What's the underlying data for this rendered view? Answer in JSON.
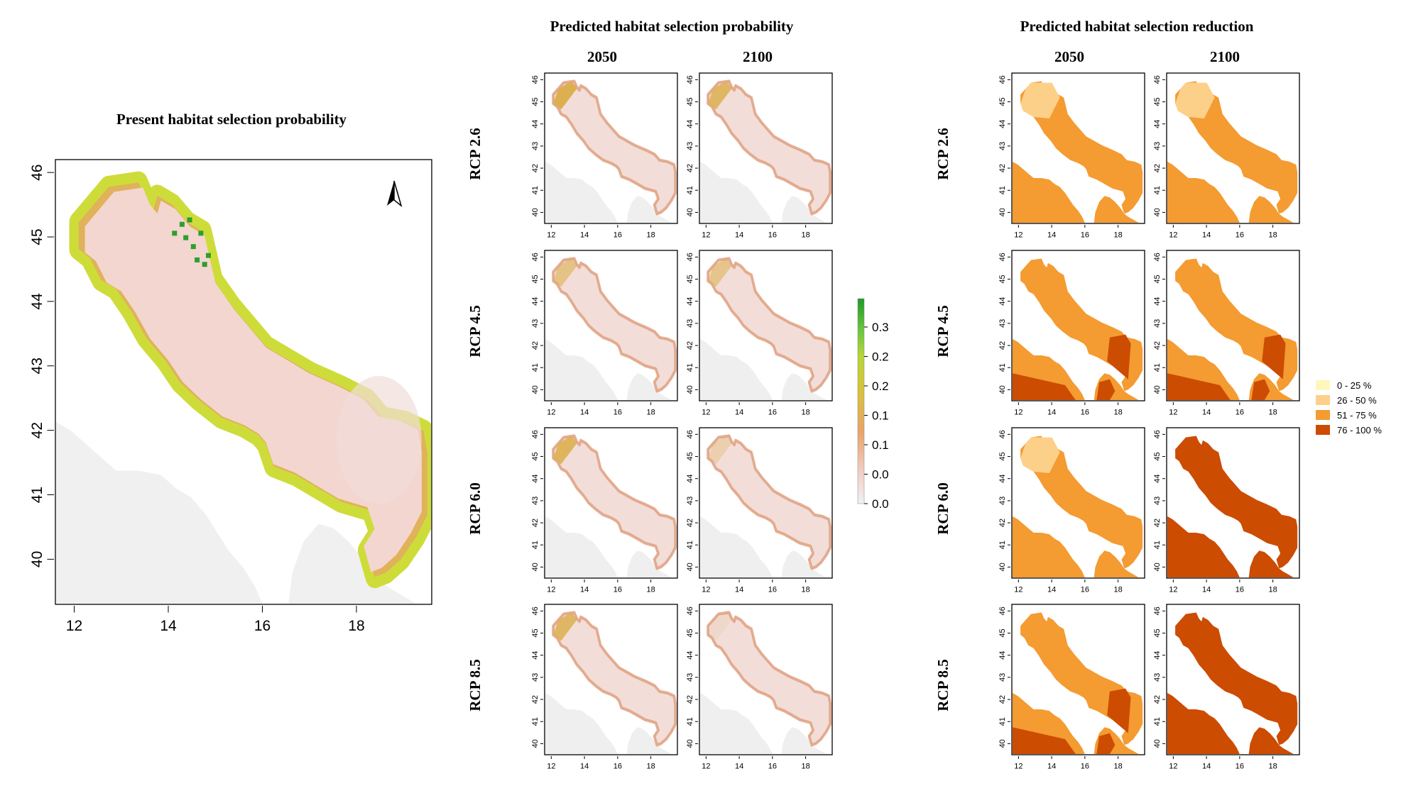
{
  "figure": {
    "left_title": "Present habitat selection probability",
    "mid_title": "Predicted habitat selection probability",
    "right_title": "Predicted habitat selection reduction",
    "years": [
      "2050",
      "2100"
    ],
    "rows": [
      "RCP 2.6",
      "RCP 4.5",
      "RCP 6.0",
      "RCP 8.5"
    ]
  },
  "chart_data": [
    {
      "type": "heatmap",
      "title": "Present habitat selection probability",
      "x_ticks": [
        12,
        14,
        16,
        18
      ],
      "y_ticks": [
        40,
        41,
        42,
        43,
        44,
        45,
        46
      ],
      "xlim": [
        11.6,
        19.6
      ],
      "ylim": [
        39.3,
        46.2
      ],
      "north_arrow": true,
      "colorbar": {
        "tick_labels": [
          "0.3",
          "0.2",
          "0.2",
          "0.1",
          "0.1",
          "0.0",
          "0.0"
        ],
        "colors": [
          "#f2f2f2",
          "#f0c8bc",
          "#e8a46a",
          "#d9c23a",
          "#b5d638",
          "#64c23e",
          "#1f9a26"
        ],
        "range": [
          0,
          0.38
        ]
      },
      "colors": {
        "sea_low": "#f0f0f0",
        "basin": "#f3d6cf",
        "coast_mid": "#e0b25a",
        "coast_high": "#cedc3a",
        "coast_peak": "#2f9e2f"
      }
    },
    {
      "type": "heatmap",
      "title": "Predicted habitat selection probability",
      "columns": [
        "2050",
        "2100"
      ],
      "rows": [
        "RCP 2.6",
        "RCP 4.5",
        "RCP 6.0",
        "RCP 8.5"
      ],
      "x_ticks": [
        12,
        14,
        16,
        18
      ],
      "y_ticks": [
        40,
        41,
        42,
        43,
        44,
        45,
        46
      ],
      "northern_coast_intensity": [
        [
          1.0,
          0.85
        ],
        [
          0.6,
          0.55
        ],
        [
          0.9,
          0.3
        ],
        [
          0.85,
          0.1
        ]
      ]
    },
    {
      "type": "heatmap",
      "title": "Predicted habitat selection reduction",
      "columns": [
        "2050",
        "2100"
      ],
      "rows": [
        "RCP 2.6",
        "RCP 4.5",
        "RCP 6.0",
        "RCP 8.5"
      ],
      "x_ticks": [
        12,
        14,
        16,
        18
      ],
      "y_ticks": [
        40,
        41,
        42,
        43,
        44,
        45,
        46
      ],
      "legend": [
        {
          "label": "0 - 25 %",
          "color": "#fff7bc"
        },
        {
          "label": "26 - 50 %",
          "color": "#fdd08a"
        },
        {
          "label": "51 - 75 %",
          "color": "#f49b31"
        },
        {
          "label": "76 - 100 %",
          "color": "#cc4c02"
        }
      ],
      "panels": [
        {
          "row": "RCP 2.6",
          "year": "2050",
          "base": "51 - 75 %",
          "northwest": "26 - 50 %",
          "southeast": null,
          "sw_corner": null
        },
        {
          "row": "RCP 2.6",
          "year": "2100",
          "base": "51 - 75 %",
          "northwest": "26 - 50 %",
          "southeast": null,
          "sw_corner": null
        },
        {
          "row": "RCP 4.5",
          "year": "2050",
          "base": "51 - 75 %",
          "northwest": null,
          "southeast": "76 - 100 %",
          "sw_corner": "76 - 100 %"
        },
        {
          "row": "RCP 4.5",
          "year": "2100",
          "base": "51 - 75 %",
          "northwest": null,
          "southeast": "76 - 100 %",
          "sw_corner": "76 - 100 %"
        },
        {
          "row": "RCP 6.0",
          "year": "2050",
          "base": "51 - 75 %",
          "northwest": "26 - 50 %",
          "southeast": null,
          "sw_corner": null
        },
        {
          "row": "RCP 6.0",
          "year": "2100",
          "base": "76 - 100 %",
          "northwest": null,
          "southeast": null,
          "sw_corner": null
        },
        {
          "row": "RCP 8.5",
          "year": "2050",
          "base": "51 - 75 %",
          "northwest": null,
          "southeast": "76 - 100 %",
          "sw_corner": "76 - 100 %"
        },
        {
          "row": "RCP 8.5",
          "year": "2100",
          "base": "76 - 100 %",
          "northwest": null,
          "southeast": null,
          "sw_corner": null
        }
      ]
    }
  ]
}
